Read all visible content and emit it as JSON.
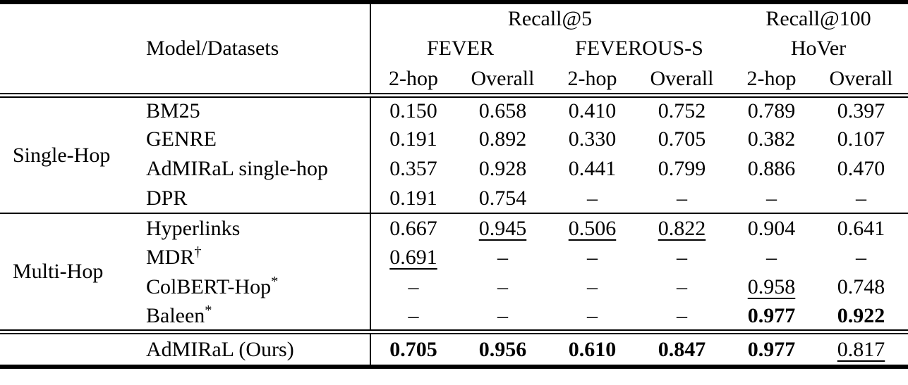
{
  "table": {
    "header": {
      "model_datasets": "Model/Datasets",
      "metric_groups": [
        {
          "label": "Recall@5"
        },
        {
          "label": "Recall@100"
        }
      ],
      "datasets": [
        {
          "name": "FEVER"
        },
        {
          "name": "FEVEROUS-S"
        },
        {
          "name": "HoVer"
        }
      ],
      "subcolumns": [
        "2-hop",
        "Overall",
        "2-hop",
        "Overall",
        "2-hop",
        "Overall"
      ]
    },
    "groups": [
      {
        "label": "Single-Hop",
        "rows": [
          {
            "model": "BM25",
            "cells": [
              "0.150",
              "0.658",
              "0.410",
              "0.752",
              "0.789",
              "0.397"
            ]
          },
          {
            "model": "GENRE",
            "cells": [
              "0.191",
              "0.892",
              "0.330",
              "0.705",
              "0.382",
              "0.107"
            ]
          },
          {
            "model": "AdMIRaL single-hop",
            "cells": [
              "0.357",
              "0.928",
              "0.441",
              "0.799",
              "0.886",
              "0.470"
            ]
          },
          {
            "model": "DPR",
            "cells": [
              "0.191",
              "0.754",
              "–",
              "–",
              "–",
              "–"
            ]
          }
        ]
      },
      {
        "label": "Multi-Hop",
        "rows": [
          {
            "model": "Hyperlinks",
            "sup": "",
            "cells": [
              "0.667",
              "0.945",
              "0.506",
              "0.822",
              "0.904",
              "0.641"
            ]
          },
          {
            "model": "MDR",
            "sup": "†",
            "cells": [
              "0.691",
              "–",
              "–",
              "–",
              "–",
              "–"
            ]
          },
          {
            "model": "ColBERT-Hop",
            "sup": "*",
            "cells": [
              "–",
              "–",
              "–",
              "–",
              "0.958",
              "0.748"
            ]
          },
          {
            "model": "Baleen",
            "sup": "*",
            "cells": [
              "–",
              "–",
              "–",
              "–",
              "0.977",
              "0.922"
            ]
          }
        ]
      }
    ],
    "final_row": {
      "model": "AdMIRaL (Ours)",
      "cells": [
        "0.705",
        "0.956",
        "0.610",
        "0.847",
        "0.977",
        "0.817"
      ]
    }
  }
}
